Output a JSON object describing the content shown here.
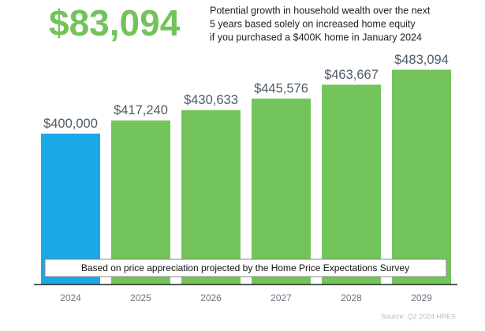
{
  "chart_data": {
    "type": "bar",
    "headline": "$83,094",
    "subtitle": [
      "Potential growth in household wealth over the next",
      "5 years based solely on increased home equity",
      "if you purchased a $400K home in January 2024"
    ],
    "note": "Based on price appreciation projected by the Home Price Expectations Survey",
    "source": "Source: Q2 2024 HPES",
    "categories": [
      "2024",
      "2025",
      "2026",
      "2027",
      "2028",
      "2029"
    ],
    "values": [
      400000,
      417240,
      430633,
      445576,
      463667,
      483094
    ],
    "value_labels": [
      "$400,000",
      "$417,240",
      "$430,633",
      "$445,576",
      "$463,667",
      "$483,094"
    ],
    "colors": [
      "#1ba8e6",
      "#73c45a",
      "#73c45a",
      "#73c45a",
      "#73c45a",
      "#73c45a"
    ],
    "ylim": [
      204000,
      500000
    ]
  }
}
